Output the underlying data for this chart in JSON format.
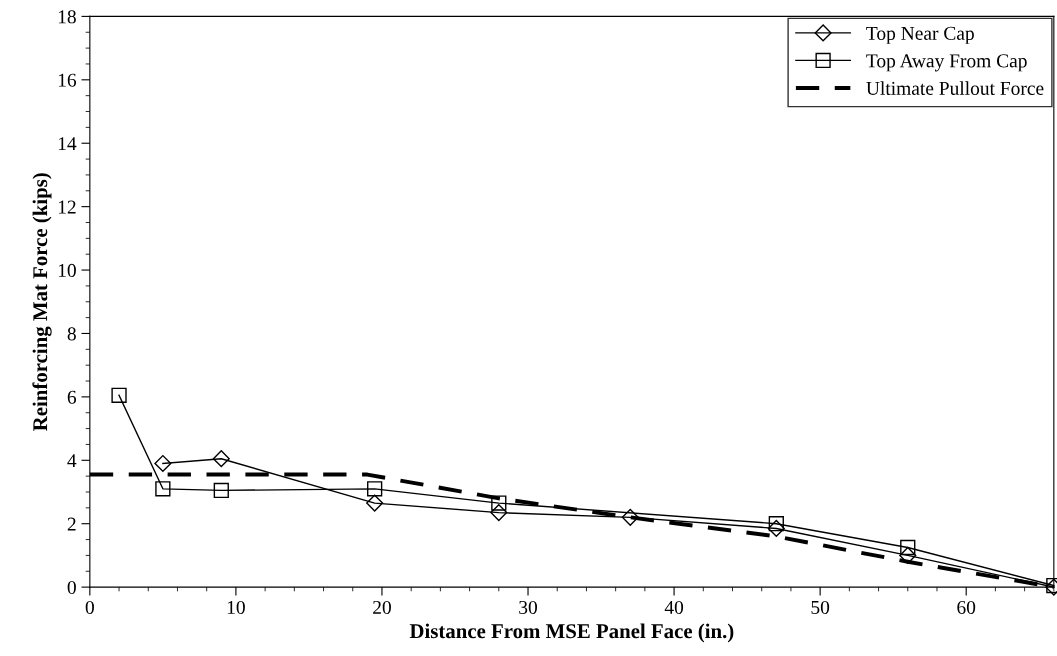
{
  "chart_data": {
    "type": "line",
    "xlabel": "Distance From MSE Panel Face (in.)",
    "ylabel": "Reinforcing Mat Force (kips)",
    "xlim": [
      0,
      66
    ],
    "xticks": [
      0,
      10,
      20,
      30,
      40,
      50,
      60
    ],
    "ylim": [
      0,
      18
    ],
    "yticks": [
      0,
      2,
      4,
      6,
      8,
      10,
      12,
      14,
      16,
      18
    ],
    "grid": false,
    "legend": "top right",
    "series": [
      {
        "name": "Top Near Cap",
        "color": "#000000",
        "marker": "diamond",
        "line_style": "solid",
        "x": [
          5,
          9,
          19.5,
          28,
          37,
          47,
          56,
          66
        ],
        "values": [
          3.9,
          4.05,
          2.65,
          2.35,
          2.2,
          1.85,
          1.0,
          0
        ]
      },
      {
        "name": "Top Away From Cap",
        "color": "#000000",
        "marker": "square",
        "line_style": "solid",
        "x": [
          2,
          5,
          9,
          19.5,
          28,
          47,
          56,
          66
        ],
        "values": [
          6.05,
          3.1,
          3.05,
          3.1,
          2.65,
          2.0,
          1.25,
          0.05
        ]
      },
      {
        "name": "Ultimate Pullout Force",
        "color": "#000000",
        "marker": "none",
        "line_style": "dashed",
        "x": [
          0,
          19,
          28,
          37,
          47,
          56,
          66
        ],
        "values": [
          3.55,
          3.55,
          2.8,
          2.2,
          1.6,
          0.8,
          0
        ]
      }
    ]
  }
}
